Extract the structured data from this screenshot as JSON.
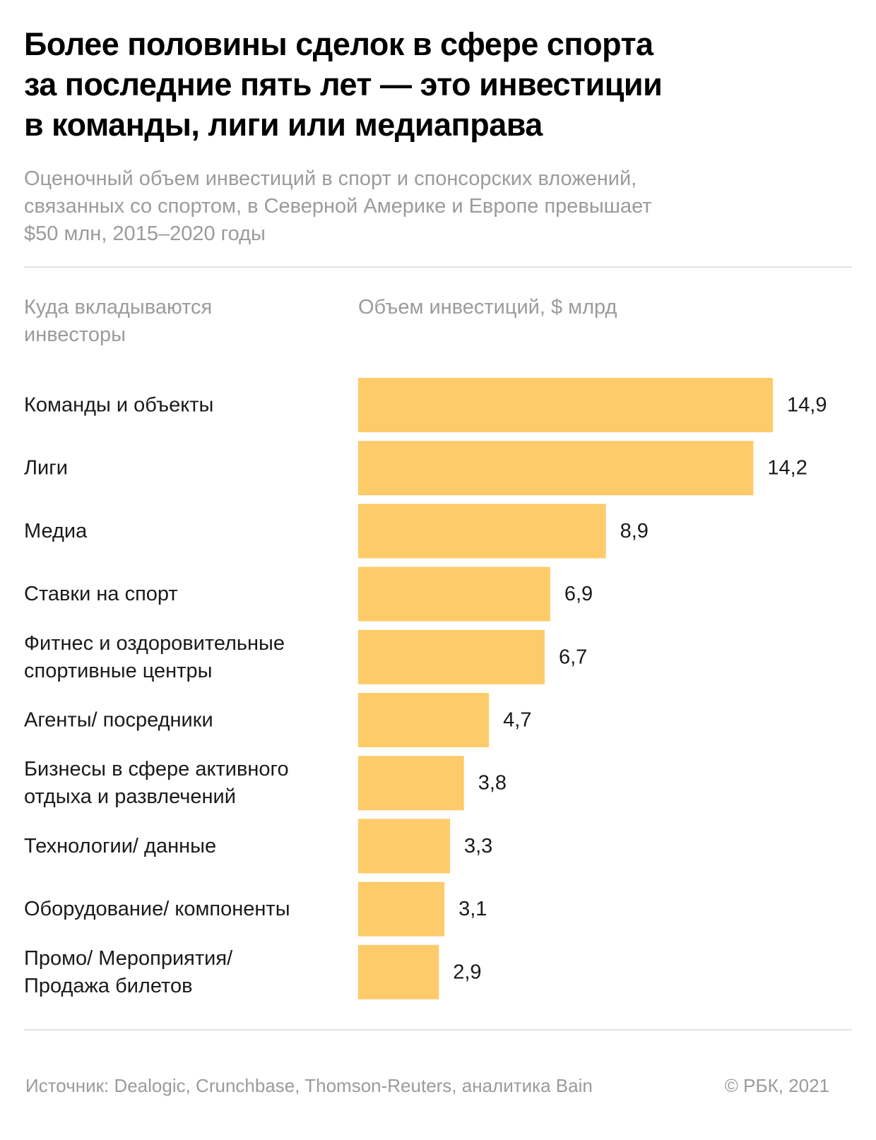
{
  "title_lines": [
    "Более половины сделок в сфере спорта",
    "за последние пять лет — это инвестиции",
    "в команды, лиги или медиаправа"
  ],
  "subtitle_lines": [
    "Оценочный объем инвестиций в спорт и спонсорских вложений,",
    "связанных со спортом, в Северной Америке и Европе превышает",
    "$50 млн, 2015–2020 годы"
  ],
  "column_headers": {
    "category_lines": [
      "Куда вкладываются",
      "инвесторы"
    ],
    "value": "Объем инвестиций, $ млрд"
  },
  "footer": {
    "source": "Источник:  Dealogic, Crunchbase, Thomson-Reuters, аналитика Bain",
    "copyright": "©  РБК, 2021"
  },
  "colors": {
    "bar": "#fdcb6a",
    "text": "#1a1a1a",
    "muted": "#9b9b9b",
    "rule": "#e3e3e3"
  },
  "chart_data": {
    "type": "bar",
    "orientation": "horizontal",
    "title": "Более половины сделок в сфере спорта за последние пять лет — это инвестиции в команды, лиги или медиаправа",
    "xlabel": "Объем инвестиций, $ млрд",
    "ylabel": "Куда вкладываются инвесторы",
    "xlim": [
      0,
      15
    ],
    "grid": false,
    "categories": [
      [
        "Команды и объекты"
      ],
      [
        "Лиги"
      ],
      [
        "Медиа"
      ],
      [
        "Ставки на спорт"
      ],
      [
        "Фитнес и оздоровительные",
        "спортивные центры"
      ],
      [
        "Агенты/ посредники"
      ],
      [
        "Бизнесы в сфере активного",
        "отдыха и развлечений"
      ],
      [
        "Технологии/ данные"
      ],
      [
        "Оборудование/ компоненты"
      ],
      [
        "Промо/ Мероприятия/",
        "Продажа билетов"
      ]
    ],
    "values": [
      14.9,
      14.2,
      8.9,
      6.9,
      6.7,
      4.7,
      3.8,
      3.3,
      3.1,
      2.9
    ],
    "value_labels": [
      "14,9",
      "14,2",
      "8,9",
      "6,9",
      "6,7",
      "4,7",
      "3,8",
      "3,3",
      "3,1",
      "2,9"
    ]
  }
}
